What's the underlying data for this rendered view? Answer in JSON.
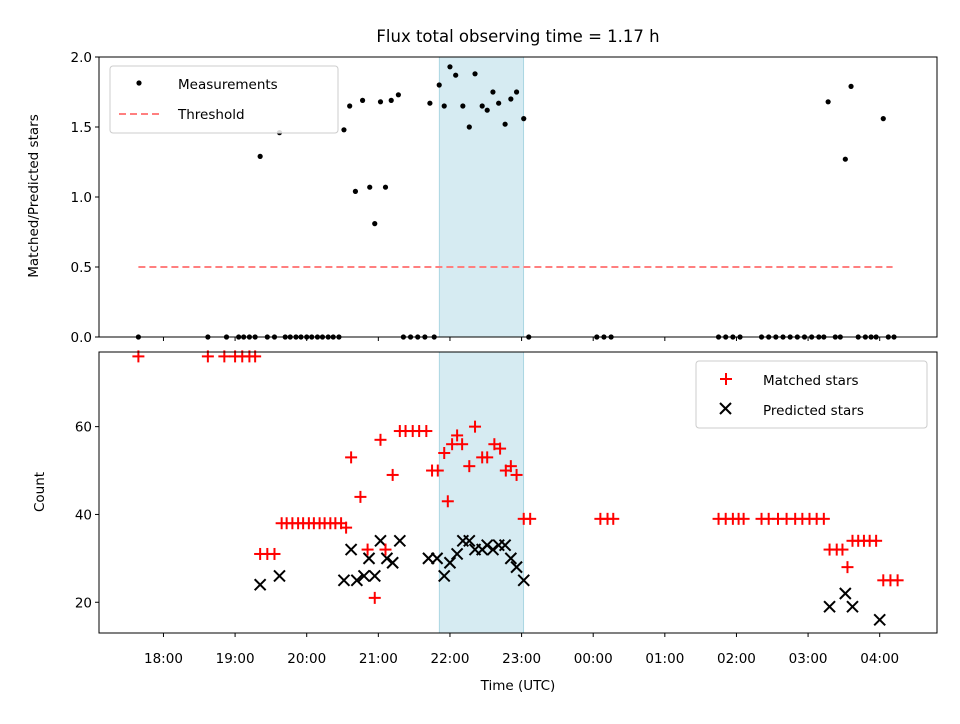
{
  "chart_data": [
    {
      "type": "scatter",
      "title": "Flux total observing time = 1.17 h",
      "xlabel": "",
      "ylabel": "Matched/Predicted stars",
      "xlim": [
        17.1,
        28.8
      ],
      "ylim": [
        0,
        2.0
      ],
      "y_ticks": [
        0.0,
        0.5,
        1.0,
        1.5,
        2.0
      ],
      "y_tick_labels": [
        "0.0",
        "0.5",
        "1.0",
        "1.5",
        "2.0"
      ],
      "x_ticks": [
        18,
        19,
        20,
        21,
        22,
        23,
        24,
        25,
        26,
        27,
        28
      ],
      "highlight_span": [
        21.85,
        23.03
      ],
      "legend": [
        {
          "label": "Measurements",
          "marker": "dot",
          "color": "#000000"
        },
        {
          "label": "Threshold",
          "marker": "dashed-line",
          "color": "#ff7f7f"
        }
      ],
      "threshold": {
        "y": 0.5,
        "x_start": 17.65,
        "x_end": 28.18
      },
      "series": [
        {
          "name": "Measurements",
          "points": [
            [
              17.65,
              0
            ],
            [
              18.62,
              0
            ],
            [
              18.88,
              0
            ],
            [
              19.05,
              0
            ],
            [
              19.12,
              0
            ],
            [
              19.2,
              0
            ],
            [
              19.28,
              0
            ],
            [
              19.35,
              1.29
            ],
            [
              19.45,
              0
            ],
            [
              19.55,
              0
            ],
            [
              19.62,
              1.46
            ],
            [
              19.7,
              0
            ],
            [
              19.77,
              0
            ],
            [
              19.85,
              0
            ],
            [
              19.92,
              0
            ],
            [
              20.0,
              0
            ],
            [
              20.07,
              0
            ],
            [
              20.15,
              0
            ],
            [
              20.22,
              0
            ],
            [
              20.3,
              0
            ],
            [
              20.37,
              0
            ],
            [
              20.45,
              0
            ],
            [
              20.52,
              1.48
            ],
            [
              20.6,
              1.65
            ],
            [
              20.68,
              1.04
            ],
            [
              20.78,
              1.69
            ],
            [
              20.88,
              1.07
            ],
            [
              20.95,
              0.81
            ],
            [
              21.03,
              1.68
            ],
            [
              21.1,
              1.07
            ],
            [
              21.18,
              1.69
            ],
            [
              21.28,
              1.73
            ],
            [
              21.35,
              0
            ],
            [
              21.45,
              0
            ],
            [
              21.55,
              0
            ],
            [
              21.65,
              0
            ],
            [
              21.72,
              1.67
            ],
            [
              21.78,
              0
            ],
            [
              21.85,
              1.8
            ],
            [
              21.92,
              1.65
            ],
            [
              22.0,
              1.93
            ],
            [
              22.08,
              1.87
            ],
            [
              22.18,
              1.65
            ],
            [
              22.27,
              1.5
            ],
            [
              22.35,
              1.88
            ],
            [
              22.45,
              1.65
            ],
            [
              22.52,
              1.62
            ],
            [
              22.6,
              1.75
            ],
            [
              22.68,
              1.67
            ],
            [
              22.77,
              1.52
            ],
            [
              22.85,
              1.7
            ],
            [
              22.93,
              1.75
            ],
            [
              23.03,
              1.56
            ],
            [
              23.1,
              0
            ],
            [
              24.05,
              0
            ],
            [
              24.15,
              0
            ],
            [
              24.25,
              0
            ],
            [
              25.75,
              0
            ],
            [
              25.85,
              0
            ],
            [
              25.95,
              0
            ],
            [
              26.05,
              0
            ],
            [
              26.35,
              0
            ],
            [
              26.45,
              0
            ],
            [
              26.55,
              0
            ],
            [
              26.65,
              0
            ],
            [
              26.75,
              0
            ],
            [
              26.85,
              0
            ],
            [
              26.95,
              0
            ],
            [
              27.05,
              0
            ],
            [
              27.15,
              0
            ],
            [
              27.22,
              0
            ],
            [
              27.28,
              1.68
            ],
            [
              27.38,
              0
            ],
            [
              27.45,
              0
            ],
            [
              27.52,
              1.27
            ],
            [
              27.6,
              1.79
            ],
            [
              27.7,
              0
            ],
            [
              27.8,
              0
            ],
            [
              27.88,
              0
            ],
            [
              27.95,
              0
            ],
            [
              28.05,
              1.56
            ],
            [
              28.12,
              0
            ],
            [
              28.2,
              0
            ]
          ]
        },
        {
          "name": "Threshold",
          "values": [
            0.5
          ]
        }
      ]
    },
    {
      "type": "scatter",
      "title": "",
      "xlabel": "Time (UTC)",
      "ylabel": "Count",
      "xlim": [
        17.1,
        28.8
      ],
      "ylim": [
        13,
        77
      ],
      "y_ticks": [
        20,
        40,
        60
      ],
      "y_tick_labels": [
        "20",
        "40",
        "60"
      ],
      "x_ticks": [
        18,
        19,
        20,
        21,
        22,
        23,
        24,
        25,
        26,
        27,
        28
      ],
      "x_tick_labels": [
        "18:00",
        "19:00",
        "20:00",
        "21:00",
        "22:00",
        "23:00",
        "00:00",
        "01:00",
        "02:00",
        "03:00",
        "04:00"
      ],
      "highlight_span": [
        21.85,
        23.03
      ],
      "legend": [
        {
          "label": "Matched stars",
          "marker": "plus",
          "color": "#ff0000"
        },
        {
          "label": "Predicted stars",
          "marker": "x",
          "color": "#000000"
        }
      ],
      "series": [
        {
          "name": "Matched stars",
          "points": [
            [
              17.65,
              76
            ],
            [
              18.62,
              76
            ],
            [
              18.85,
              76
            ],
            [
              19.0,
              76
            ],
            [
              19.1,
              76
            ],
            [
              19.2,
              76
            ],
            [
              19.28,
              76
            ],
            [
              19.35,
              31
            ],
            [
              19.45,
              31
            ],
            [
              19.55,
              31
            ],
            [
              19.65,
              38
            ],
            [
              19.72,
              38
            ],
            [
              19.8,
              38
            ],
            [
              19.88,
              38
            ],
            [
              19.95,
              38
            ],
            [
              20.03,
              38
            ],
            [
              20.1,
              38
            ],
            [
              20.18,
              38
            ],
            [
              20.25,
              38
            ],
            [
              20.33,
              38
            ],
            [
              20.4,
              38
            ],
            [
              20.48,
              38
            ],
            [
              20.55,
              37
            ],
            [
              20.62,
              53
            ],
            [
              20.75,
              44
            ],
            [
              20.85,
              32
            ],
            [
              20.95,
              21
            ],
            [
              21.03,
              57
            ],
            [
              21.1,
              32
            ],
            [
              21.2,
              49
            ],
            [
              21.3,
              59
            ],
            [
              21.38,
              59
            ],
            [
              21.48,
              59
            ],
            [
              21.57,
              59
            ],
            [
              21.67,
              59
            ],
            [
              21.75,
              50
            ],
            [
              21.83,
              50
            ],
            [
              21.92,
              54
            ],
            [
              21.97,
              43
            ],
            [
              22.03,
              56
            ],
            [
              22.1,
              58
            ],
            [
              22.17,
              56
            ],
            [
              22.27,
              51
            ],
            [
              22.35,
              60
            ],
            [
              22.45,
              53
            ],
            [
              22.52,
              53
            ],
            [
              22.62,
              56
            ],
            [
              22.7,
              55
            ],
            [
              22.78,
              50
            ],
            [
              22.85,
              51
            ],
            [
              22.93,
              49
            ],
            [
              23.03,
              39
            ],
            [
              23.12,
              39
            ],
            [
              24.1,
              39
            ],
            [
              24.2,
              39
            ],
            [
              24.28,
              39
            ],
            [
              25.75,
              39
            ],
            [
              25.85,
              39
            ],
            [
              25.95,
              39
            ],
            [
              26.03,
              39
            ],
            [
              26.1,
              39
            ],
            [
              26.35,
              39
            ],
            [
              26.45,
              39
            ],
            [
              26.58,
              39
            ],
            [
              26.7,
              39
            ],
            [
              26.82,
              39
            ],
            [
              26.92,
              39
            ],
            [
              27.02,
              39
            ],
            [
              27.12,
              39
            ],
            [
              27.22,
              39
            ],
            [
              27.3,
              32
            ],
            [
              27.4,
              32
            ],
            [
              27.48,
              32
            ],
            [
              27.55,
              28
            ],
            [
              27.62,
              34
            ],
            [
              27.7,
              34
            ],
            [
              27.78,
              34
            ],
            [
              27.86,
              34
            ],
            [
              27.95,
              34
            ],
            [
              28.05,
              25
            ],
            [
              28.15,
              25
            ],
            [
              28.25,
              25
            ]
          ]
        },
        {
          "name": "Predicted stars",
          "points": [
            [
              19.35,
              24
            ],
            [
              19.62,
              26
            ],
            [
              20.52,
              25
            ],
            [
              20.62,
              32
            ],
            [
              20.7,
              25
            ],
            [
              20.8,
              26
            ],
            [
              20.87,
              30
            ],
            [
              20.95,
              26
            ],
            [
              21.03,
              34
            ],
            [
              21.12,
              30
            ],
            [
              21.2,
              29
            ],
            [
              21.3,
              34
            ],
            [
              21.7,
              30
            ],
            [
              21.82,
              30
            ],
            [
              21.92,
              26
            ],
            [
              22.0,
              29
            ],
            [
              22.1,
              31
            ],
            [
              22.18,
              34
            ],
            [
              22.27,
              34
            ],
            [
              22.35,
              32
            ],
            [
              22.45,
              32
            ],
            [
              22.52,
              33
            ],
            [
              22.6,
              32
            ],
            [
              22.68,
              33
            ],
            [
              22.77,
              33
            ],
            [
              22.85,
              30
            ],
            [
              22.93,
              28
            ],
            [
              23.03,
              25
            ],
            [
              27.3,
              19
            ],
            [
              27.52,
              22
            ],
            [
              27.62,
              19
            ],
            [
              28.0,
              16
            ]
          ]
        }
      ]
    }
  ]
}
